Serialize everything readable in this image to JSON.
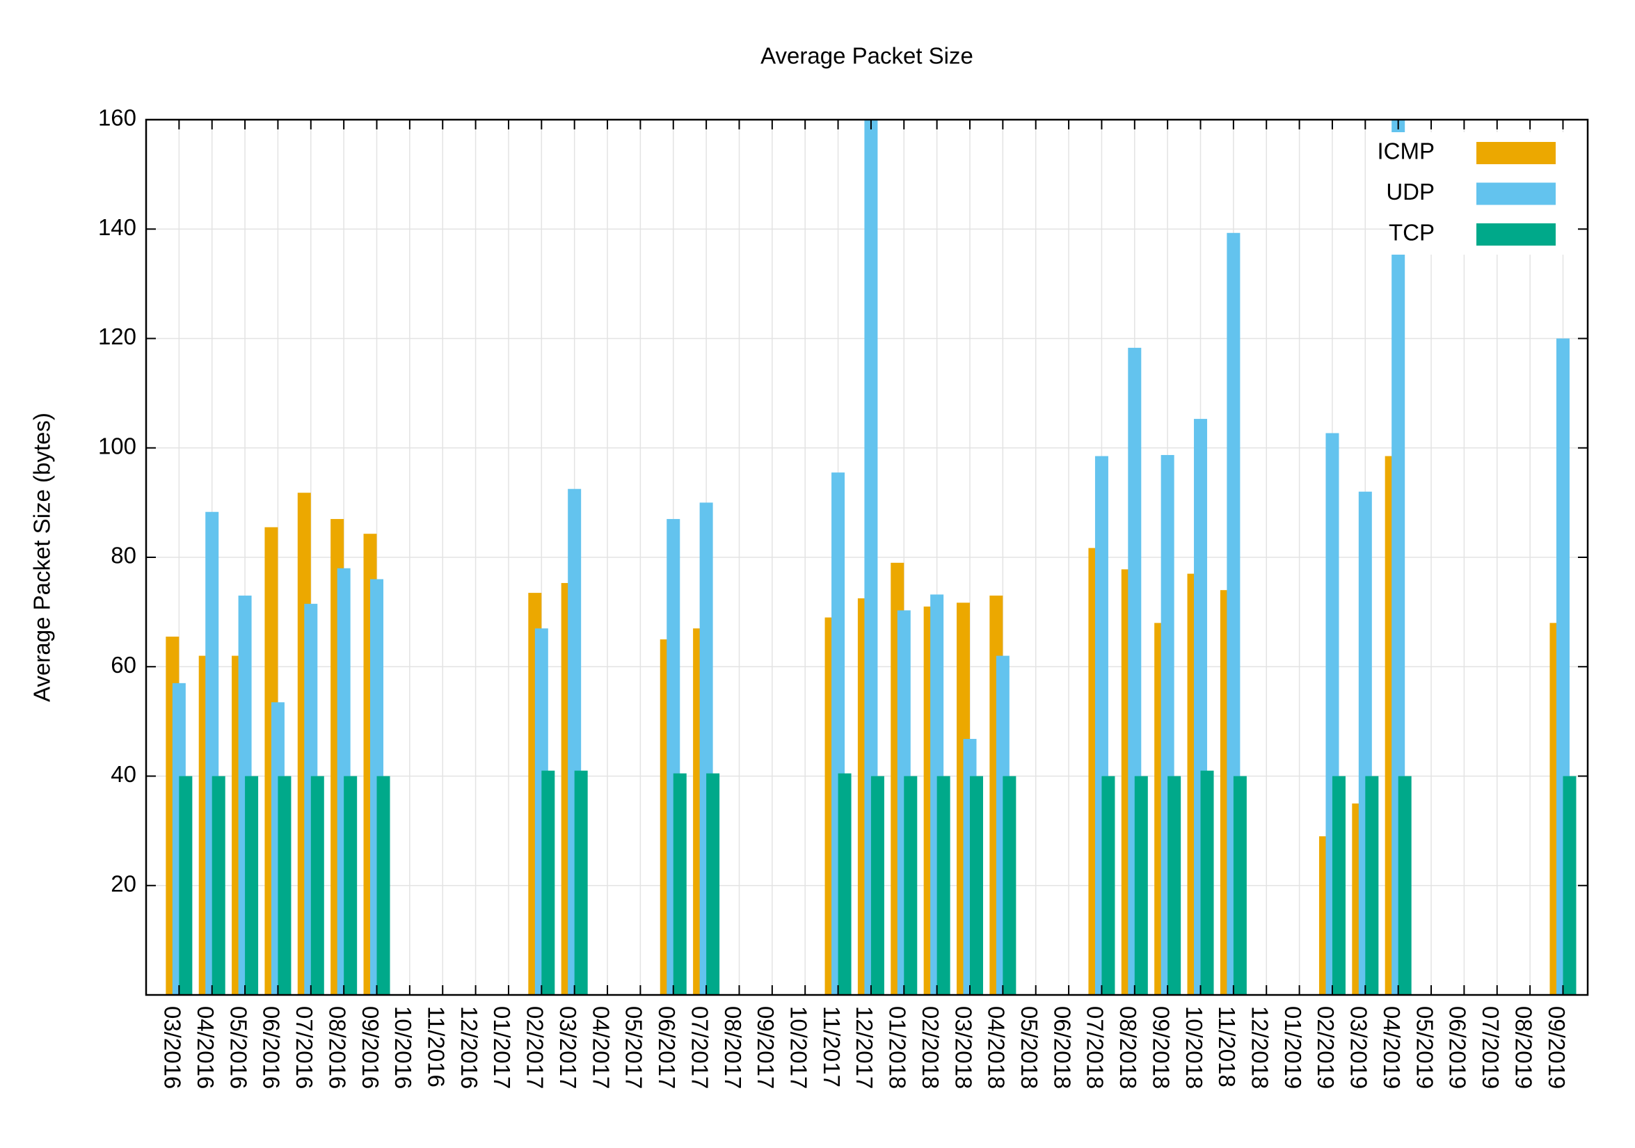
{
  "chart_data": {
    "type": "bar",
    "title": "Average Packet Size",
    "y_label": "Average Packet Size (bytes)",
    "categories": [
      "03/2016",
      "04/2016",
      "05/2016",
      "06/2016",
      "07/2016",
      "08/2016",
      "09/2016",
      "10/2016",
      "11/2016",
      "12/2016",
      "01/2017",
      "02/2017",
      "03/2017",
      "04/2017",
      "05/2017",
      "06/2017",
      "07/2017",
      "08/2017",
      "09/2017",
      "10/2017",
      "11/2017",
      "12/2017",
      "01/2018",
      "02/2018",
      "03/2018",
      "04/2018",
      "05/2018",
      "06/2018",
      "07/2018",
      "08/2018",
      "09/2018",
      "10/2018",
      "11/2018",
      "12/2018",
      "01/2019",
      "02/2019",
      "03/2019",
      "04/2019",
      "05/2019",
      "06/2019",
      "07/2019",
      "08/2019",
      "09/2019"
    ],
    "series": [
      {
        "name": "ICMP",
        "color": "#eca800",
        "values": [
          65.5,
          62,
          62,
          85.5,
          91.8,
          87,
          84.3,
          null,
          null,
          null,
          null,
          73.5,
          75.3,
          null,
          null,
          65,
          67,
          null,
          null,
          null,
          69,
          72.5,
          79,
          71,
          71.7,
          73,
          null,
          null,
          81.7,
          77.8,
          68,
          77,
          74,
          null,
          null,
          29,
          35,
          98.5,
          null,
          null,
          null,
          null,
          68
        ]
      },
      {
        "name": "UDP",
        "color": "#63c3ee",
        "values": [
          57,
          88.3,
          73,
          53.5,
          71.5,
          78,
          76,
          null,
          null,
          null,
          null,
          67,
          92.5,
          null,
          null,
          87,
          90,
          null,
          null,
          null,
          95.5,
          160,
          70.3,
          73.2,
          46.8,
          62,
          null,
          null,
          98.5,
          118.3,
          98.7,
          105.3,
          139.3,
          null,
          null,
          102.7,
          92,
          160,
          null,
          null,
          null,
          null,
          120
        ]
      },
      {
        "name": "TCP",
        "color": "#00a98a",
        "values": [
          40,
          40,
          40,
          40,
          40,
          40,
          40,
          null,
          null,
          null,
          null,
          41,
          41,
          null,
          null,
          40.5,
          40.5,
          null,
          null,
          null,
          40.5,
          40,
          40,
          40,
          40,
          40,
          null,
          null,
          40,
          40,
          40,
          41,
          40,
          null,
          null,
          40,
          40,
          40,
          null,
          null,
          null,
          null,
          40
        ]
      }
    ],
    "ylim": [
      0,
      160
    ],
    "yticks": [
      20,
      40,
      60,
      80,
      100,
      120,
      140,
      160
    ],
    "grid": true,
    "legend": "top-right"
  }
}
